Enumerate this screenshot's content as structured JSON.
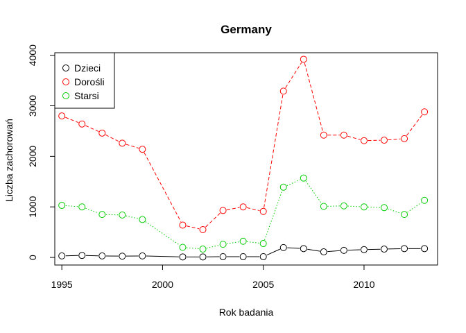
{
  "chart_data": {
    "type": "line",
    "title": "Germany",
    "xlabel": "Rok badania",
    "ylabel": "Liczba zachorowań",
    "xlim": [
      1994.65,
      2013.65
    ],
    "ylim": [
      -150,
      4050
    ],
    "x_ticks": [
      1995,
      2000,
      2005,
      2010
    ],
    "y_ticks": [
      0,
      1000,
      2000,
      3000,
      4000
    ],
    "legend_position": "top-left",
    "x": [
      1995,
      1996,
      1997,
      1998,
      1999,
      2001,
      2002,
      2003,
      2004,
      2005,
      2006,
      2007,
      2008,
      2009,
      2010,
      2011,
      2012,
      2013
    ],
    "series": [
      {
        "name": "Dzieci",
        "color": "#000000",
        "dash": "solid",
        "values": [
          30,
          40,
          30,
          25,
          30,
          10,
          10,
          15,
          15,
          15,
          195,
          175,
          110,
          140,
          155,
          165,
          175,
          175
        ]
      },
      {
        "name": "Dorośli",
        "color": "#ff0000",
        "dash": "dashed",
        "values": [
          2800,
          2640,
          2460,
          2260,
          2140,
          640,
          550,
          930,
          1000,
          910,
          3290,
          3920,
          2420,
          2420,
          2310,
          2320,
          2350,
          2880
        ]
      },
      {
        "name": "Starsi",
        "color": "#00cd00",
        "dash": "dotted",
        "values": [
          1030,
          1000,
          850,
          840,
          750,
          200,
          165,
          260,
          320,
          275,
          1390,
          1570,
          1010,
          1020,
          1000,
          985,
          850,
          1130
        ]
      }
    ]
  }
}
